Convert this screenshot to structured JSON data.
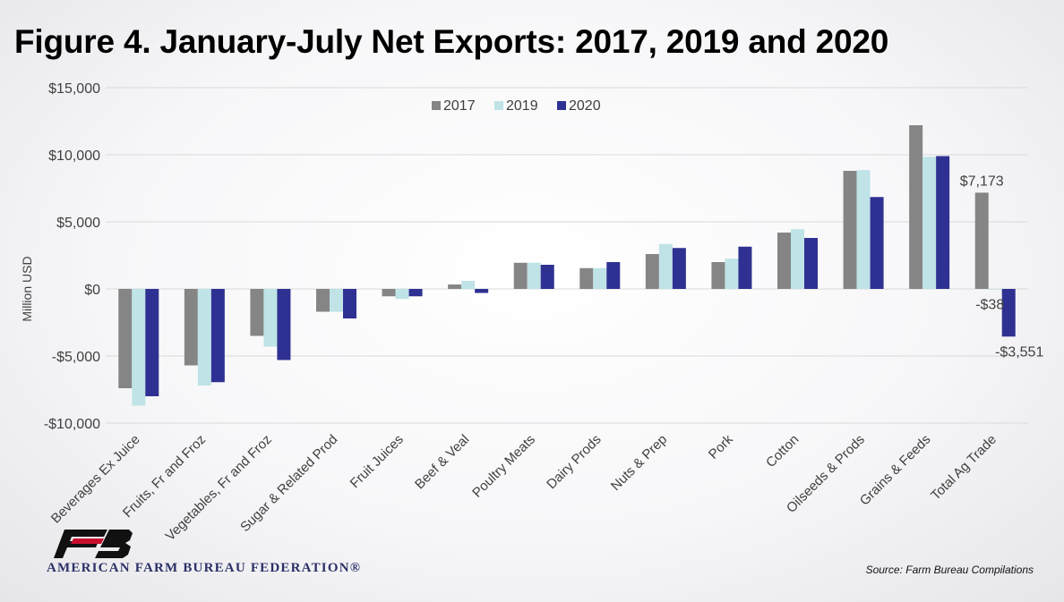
{
  "title": "Figure 4. January-July Net Exports: 2017, 2019 and 2020",
  "source": "Source: Farm Bureau Compilations",
  "logo": {
    "name": "American Farm Bureau Federation",
    "text": "AMERICAN FARM BUREAU FEDERATION®",
    "icon": "fb-logo-icon"
  },
  "colors": {
    "2017": "#858585",
    "2019": "#bfe3e6",
    "2020": "#2f3192",
    "grid": "#d9d9d9",
    "text": "#404040"
  },
  "chart_data": {
    "type": "bar",
    "title": "Figure 4. January-July Net Exports: 2017, 2019 and 2020",
    "ylabel": "Million USD",
    "ylim": [
      -10000,
      15000
    ],
    "yticks": [
      15000,
      10000,
      5000,
      0,
      -5000,
      -10000
    ],
    "ytick_labels": [
      "$15,000",
      "$10,000",
      "$5,000",
      "$0",
      "-$5,000",
      "-$10,000"
    ],
    "legend_position": "top-center",
    "grid": true,
    "categories": [
      "Beverages Ex Juice",
      "Fruits, Fr and Froz",
      "Vegetables, Fr and Froz",
      "Sugar & Related Prod",
      "Fruit Juices",
      "Beef & Veal",
      "Poultry Meats",
      "Dairy Prods",
      "Nuts & Prep",
      "Pork",
      "Cotton",
      "Oilseeds & Prods",
      "Grains & Feeds",
      "Total Ag Trade"
    ],
    "series": [
      {
        "name": "2017",
        "values": [
          -7400,
          -5700,
          -3500,
          -1700,
          -550,
          330,
          1950,
          1550,
          2600,
          2000,
          4200,
          8800,
          12200,
          7173
        ]
      },
      {
        "name": "2019",
        "values": [
          -8700,
          -7200,
          -4300,
          -1700,
          -750,
          600,
          1950,
          1550,
          3350,
          2250,
          4450,
          8850,
          9850,
          -38
        ]
      },
      {
        "name": "2020",
        "values": [
          -8000,
          -6950,
          -5300,
          -2200,
          -550,
          -300,
          1800,
          2000,
          3050,
          3150,
          3800,
          6850,
          9900,
          -3551
        ]
      }
    ],
    "data_labels": [
      {
        "category": "Total Ag Trade",
        "series": "2017",
        "text": "$7,173"
      },
      {
        "category": "Total Ag Trade",
        "series": "2019",
        "text": "-$38"
      },
      {
        "category": "Total Ag Trade",
        "series": "2020",
        "text": "-$3,551"
      }
    ]
  }
}
